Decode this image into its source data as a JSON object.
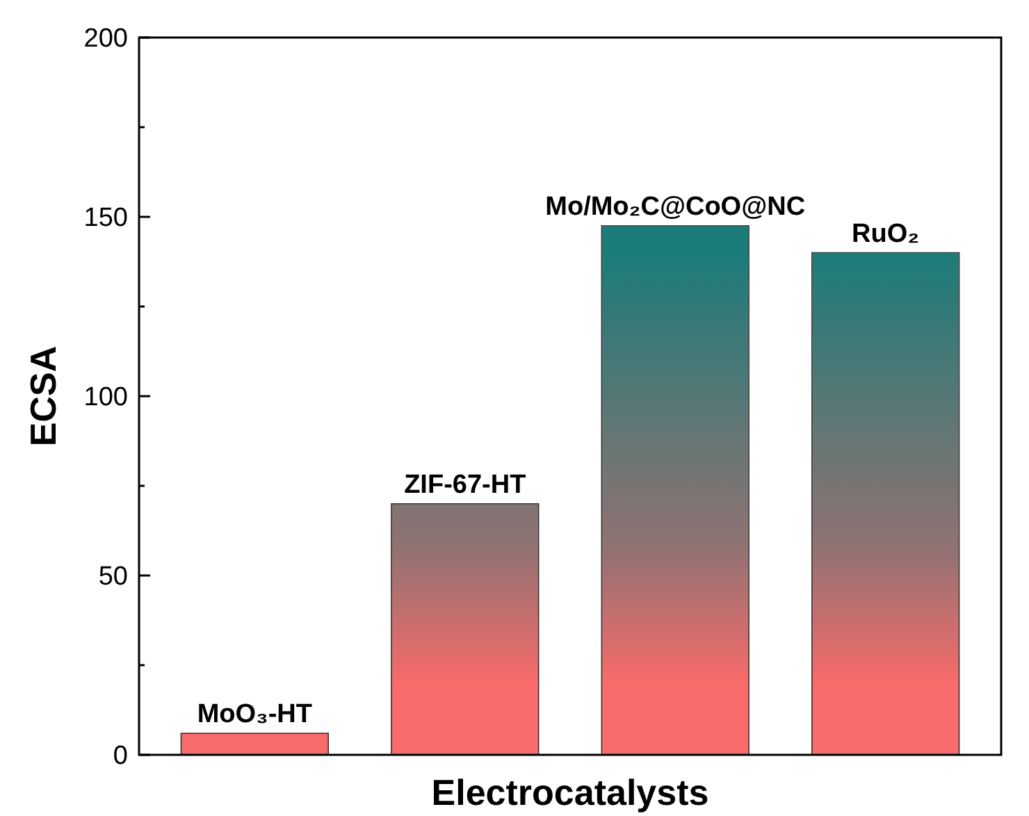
{
  "chart_data": {
    "type": "bar",
    "xlabel": "Electrocatalysts",
    "ylabel": "ECSA",
    "categories": [
      "MoO₃-HT",
      "ZIF-67-HT",
      "Mo/Mo₂C@CoO@NC",
      "RuO₂"
    ],
    "values": [
      6,
      70,
      147.5,
      140
    ],
    "color": "#fa6b6b",
    "ylim": [
      0,
      200
    ],
    "yticks": [
      0,
      {
        "value": 25,
        "label": null
      },
      50,
      {
        "value": 75,
        "label": null
      },
      100,
      {
        "value": 125,
        "label": null
      },
      150,
      {
        "value": 175,
        "label": null
      },
      200
    ],
    "tick_labels": "y",
    "grid": false
  }
}
